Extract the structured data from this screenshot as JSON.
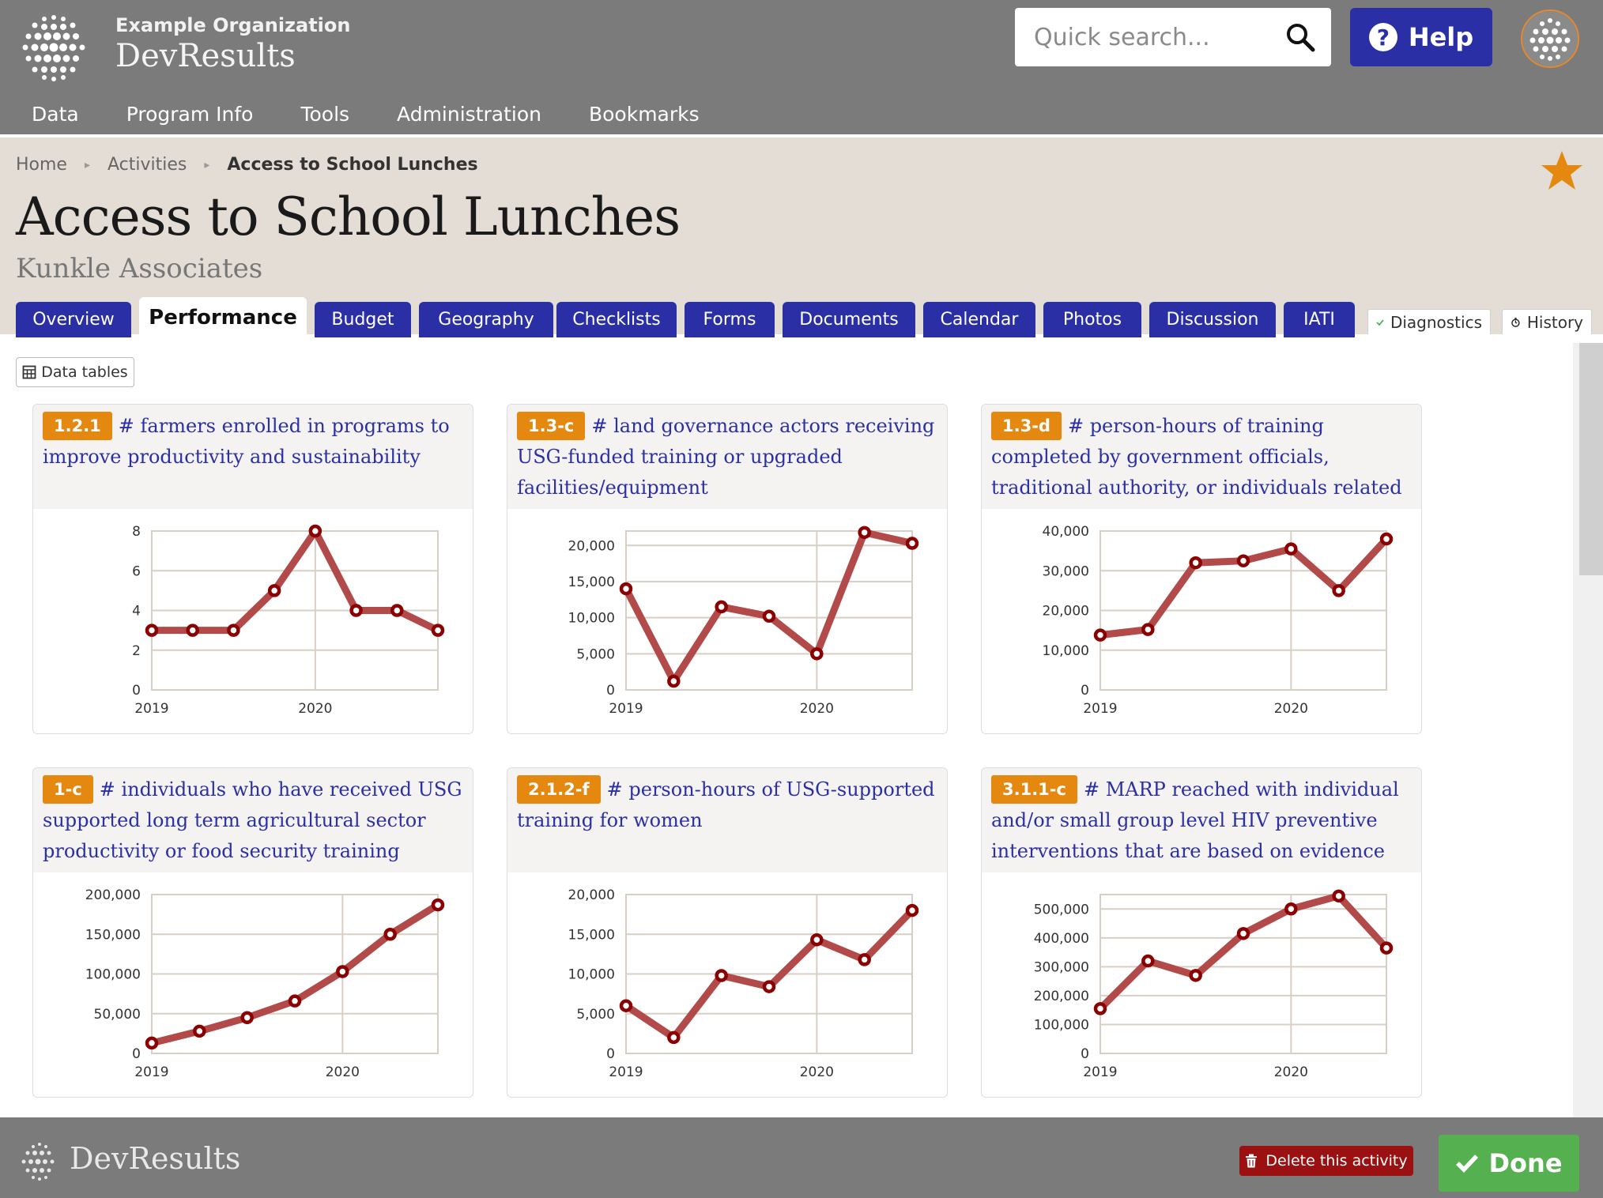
{
  "header": {
    "org_name": "Example Organization",
    "app_name": "DevResults",
    "search_placeholder": "Quick search...",
    "help_label": "Help",
    "nav": [
      "Data",
      "Program Info",
      "Tools",
      "Administration",
      "Bookmarks"
    ]
  },
  "breadcrumb": {
    "home": "Home",
    "activities": "Activities",
    "current": "Access to School Lunches"
  },
  "page": {
    "title": "Access to School Lunches",
    "subtitle": "Kunkle Associates"
  },
  "tabs": [
    "Overview",
    "Performance",
    "Budget",
    "Geography",
    "Checklists",
    "Forms",
    "Documents",
    "Calendar",
    "Photos",
    "Discussion",
    "IATI"
  ],
  "active_tab": "Performance",
  "side_tabs": {
    "diagnostics": "Diagnostics",
    "history": "History"
  },
  "toolbar": {
    "data_tables_label": "Data tables"
  },
  "cards": [
    {
      "code": "1.2.1",
      "title": "# farmers enrolled in programs to improve productivity and sustainability"
    },
    {
      "code": "1.3-c",
      "title": "# land governance actors receiving USG-funded training or upgraded facilities/equipment"
    },
    {
      "code": "1.3-d",
      "title": "# person-hours of training completed by government officials, traditional authority, or individuals related to land tenure and"
    },
    {
      "code": "1-c",
      "title": "# individuals who have received USG supported long term agricultural sector productivity or food security training"
    },
    {
      "code": "2.1.2-f",
      "title": "# person-hours of USG-supported training for women"
    },
    {
      "code": "3.1.1-c",
      "title": "# MARP reached with individual and/or small group level HIV preventive interventions that are based on evidence"
    }
  ],
  "chart_data": [
    {
      "type": "line",
      "x_ticks": [
        "2019",
        "2020"
      ],
      "x_tick_pos": [
        0,
        4
      ],
      "ylim": [
        0,
        8
      ],
      "y_ticks": [
        0,
        2,
        4,
        6,
        8
      ],
      "y_tick_labels": [
        "0",
        "2",
        "4",
        "6",
        "8"
      ],
      "values": [
        3,
        3,
        3,
        5,
        8,
        4,
        4,
        3
      ]
    },
    {
      "type": "line",
      "x_ticks": [
        "2019",
        "2020"
      ],
      "x_tick_pos": [
        0,
        4
      ],
      "ylim": [
        0,
        22000
      ],
      "y_ticks": [
        0,
        5000,
        10000,
        15000,
        20000
      ],
      "y_tick_labels": [
        "0",
        "5,000",
        "10,000",
        "15,000",
        "20,000"
      ],
      "values": [
        14000,
        1200,
        11500,
        10200,
        5000,
        21800,
        20300
      ]
    },
    {
      "type": "line",
      "x_ticks": [
        "2019",
        "2020"
      ],
      "x_tick_pos": [
        0,
        4
      ],
      "ylim": [
        0,
        40000
      ],
      "y_ticks": [
        0,
        10000,
        20000,
        30000,
        40000
      ],
      "y_tick_labels": [
        "0",
        "10,000",
        "20,000",
        "30,000",
        "40,000"
      ],
      "values": [
        13800,
        15200,
        32000,
        32500,
        35500,
        25000,
        38000
      ]
    },
    {
      "type": "line",
      "x_ticks": [
        "2019",
        "2020"
      ],
      "x_tick_pos": [
        0,
        4
      ],
      "ylim": [
        0,
        200000
      ],
      "y_ticks": [
        0,
        50000,
        100000,
        150000,
        200000
      ],
      "y_tick_labels": [
        "0",
        "50,000",
        "100,000",
        "150,000",
        "200,000"
      ],
      "values": [
        13000,
        28000,
        45000,
        66000,
        103000,
        150000,
        187000
      ]
    },
    {
      "type": "line",
      "x_ticks": [
        "2019",
        "2020"
      ],
      "x_tick_pos": [
        0,
        4
      ],
      "ylim": [
        0,
        20000
      ],
      "y_ticks": [
        0,
        5000,
        10000,
        15000,
        20000
      ],
      "y_tick_labels": [
        "0",
        "5,000",
        "10,000",
        "15,000",
        "20,000"
      ],
      "values": [
        6000,
        2000,
        9800,
        8400,
        14300,
        11800,
        18000
      ]
    },
    {
      "type": "line",
      "x_ticks": [
        "2019",
        "2020"
      ],
      "x_tick_pos": [
        0,
        4
      ],
      "ylim": [
        0,
        550000
      ],
      "y_ticks": [
        0,
        100000,
        200000,
        300000,
        400000,
        500000
      ],
      "y_tick_labels": [
        "0",
        "100,000",
        "200,000",
        "300,000",
        "400,000",
        "500,000"
      ],
      "values": [
        155000,
        320000,
        270000,
        415000,
        500000,
        545000,
        365000
      ]
    }
  ],
  "footer": {
    "brand": "DevResults",
    "delete_label": "Delete this activity",
    "done_label": "Done"
  },
  "colors": {
    "header_bg": "#7b7b7b",
    "accent_blue": "#2b2fa5",
    "badge_orange": "#e5880f",
    "line": "#b24a4a",
    "marker": "#8b0000",
    "done_green": "#55b04f",
    "delete_red": "#9b1010"
  }
}
